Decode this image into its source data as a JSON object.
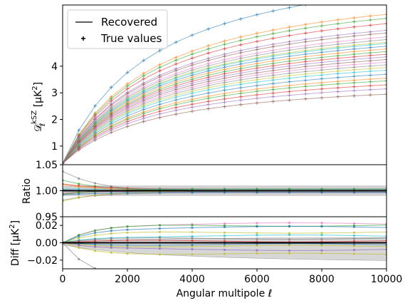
{
  "chart_data": [
    {
      "type": "line",
      "panel": "main",
      "ylabel": "𝒟_ℓ^kSZ [μK²]",
      "xlim": [
        0,
        10000
      ],
      "ylim": [
        0.3,
        6.3
      ],
      "yticks": [
        1,
        2,
        3,
        4
      ],
      "grid": false,
      "legend": {
        "placement": "top-left",
        "entries": [
          {
            "label": "Recovered",
            "marker": "line"
          },
          {
            "label": "True values",
            "marker": "plus"
          }
        ]
      },
      "x": [
        0,
        500,
        1000,
        1500,
        2000,
        2500,
        3000,
        3500,
        4000,
        4500,
        5000,
        5500,
        6000,
        6500,
        7000,
        7500,
        8000,
        8500,
        9000,
        9500,
        10000
      ],
      "series_amplitudes": [
        6.4,
        5.6,
        5.45,
        5.25,
        5.0,
        4.9,
        4.75,
        4.65,
        4.55,
        4.5,
        4.4,
        4.3,
        4.2,
        4.1,
        4.0,
        3.9,
        3.8,
        3.7,
        3.6,
        3.5,
        3.35,
        3.2,
        3.1,
        2.95,
        2.8,
        2.6
      ],
      "curve_shape": "amplitude * x/(x+2800) * 1.28"
    },
    {
      "type": "line",
      "panel": "ratio",
      "ylabel": "Ratio",
      "xlim": [
        0,
        10000
      ],
      "ylim": [
        0.95,
        1.05
      ],
      "yticks": [
        0.95,
        1.0,
        1.05
      ],
      "ytick_labels": [
        "0.95",
        "1.00",
        "1.05"
      ],
      "band": [
        0.99,
        1.01
      ]
    },
    {
      "type": "line",
      "panel": "diff",
      "ylabel": "Diff [μK²]",
      "xlabel": "Angular multipole ℓ",
      "xlim": [
        0,
        10000
      ],
      "ylim": [
        -0.03,
        0.03
      ],
      "yticks": [
        -0.02,
        0.0,
        0.02
      ],
      "ytick_labels": [
        "−0.02",
        "0.00",
        "0.02"
      ],
      "xticks": [
        0,
        2000,
        4000,
        6000,
        8000,
        10000
      ],
      "xtick_labels": [
        "0",
        "2000",
        "4000",
        "6000",
        "8000",
        "10000"
      ]
    }
  ],
  "colors": {
    "tab10": [
      "#1f77b4",
      "#ff7f0e",
      "#2ca02c",
      "#d62728",
      "#9467bd",
      "#8c564b",
      "#e377c2",
      "#7f7f7f",
      "#bcbd22",
      "#17becf"
    ],
    "band": "#bdbdbd",
    "axis": "#000000"
  }
}
